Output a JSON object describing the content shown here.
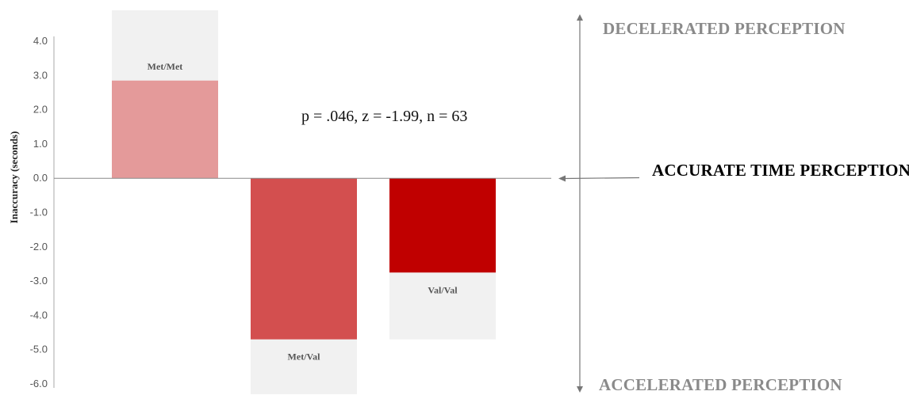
{
  "chart_data": {
    "type": "bar",
    "ylabel": "Inaccuracy (seconds)",
    "ylim": [
      -6.0,
      4.0
    ],
    "yticks": [
      "4.0",
      "3.0",
      "2.0",
      "1.0",
      "0.0",
      "-1.0",
      "-2.0",
      "-3.0",
      "-4.0",
      "-5.0",
      "-6.0"
    ],
    "categories": [
      "Met/Met",
      "Met/Val",
      "Val/Val"
    ],
    "values": [
      2.85,
      -4.7,
      -2.75
    ],
    "background_values": [
      4.9,
      -6.3,
      -4.7
    ],
    "colors": [
      "#e49a9a",
      "#d34f4f",
      "#c00000"
    ],
    "background_color": "#f1f1f1",
    "annotation": "p = .046, z = -1.99, n = 63",
    "grid": false
  },
  "side_labels": {
    "top": "DECELERATED PERCEPTION",
    "middle": "ACCURATE TIME PERCEPTION",
    "bottom": "ACCELERATED PERCEPTION"
  }
}
